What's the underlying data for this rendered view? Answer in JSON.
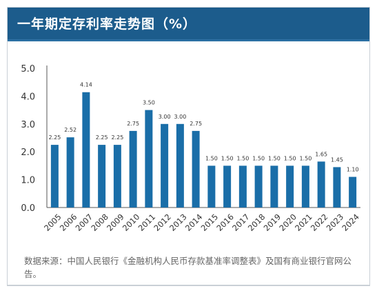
{
  "title": "一年期定存利率走势图（%）",
  "source_note": "数据来源：中国人民银行《金融机构人民币存款基准率调整表》及国有商业银行官网公告。",
  "colors": {
    "header": "#1c5c8c",
    "bar": "#1a6ea8",
    "text": "#333333",
    "axis": "#555555"
  },
  "chart_data": {
    "type": "bar",
    "title": "一年期定存利率走势图（%）",
    "xlabel": "",
    "ylabel": "",
    "categories": [
      "2005",
      "2006",
      "2007",
      "2008",
      "2009",
      "2010",
      "2011",
      "2012",
      "2013",
      "2014",
      "2015",
      "2016",
      "2017",
      "2018",
      "2019",
      "2020",
      "2021",
      "2022",
      "2023",
      "2024"
    ],
    "values": [
      2.25,
      2.52,
      4.14,
      2.25,
      2.25,
      2.75,
      3.5,
      3.0,
      3.0,
      2.75,
      1.5,
      1.5,
      1.5,
      1.5,
      1.5,
      1.5,
      1.5,
      1.65,
      1.45,
      1.1
    ],
    "value_labels": [
      "2.25",
      "2.52",
      "4.14",
      "2.25",
      "2.25",
      "2.75",
      "3.50",
      "3.00",
      "3.00",
      "2.75",
      "1.50",
      "1.50",
      "1.50",
      "1.50",
      "1.50",
      "1.50",
      "1.50",
      "1.65",
      "1.45",
      "1.10"
    ],
    "ylim": [
      0,
      5
    ],
    "yticks": [
      "0.0",
      "1.0",
      "2.0",
      "3.0",
      "4.0",
      "5.0"
    ],
    "grid": false,
    "legend": "none"
  }
}
